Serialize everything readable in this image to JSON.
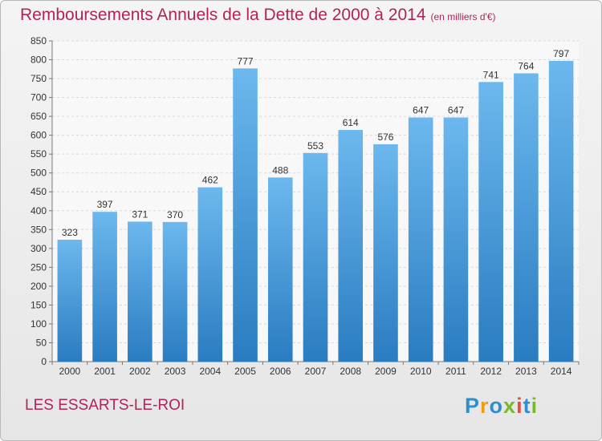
{
  "title": "Remboursements Annuels de la Dette de 2000 à 2014",
  "subtitle": "(en milliers d'€)",
  "city": "LES ESSARTS-LE-ROI",
  "logo": {
    "letters": [
      "P",
      "r",
      "o",
      "x",
      "i",
      "t",
      "i"
    ],
    "colors": [
      "#2e8fd0",
      "#f39c12",
      "#2e8fd0",
      "#7ab929",
      "#e74c3c",
      "#2e8fd0",
      "#7ab929"
    ]
  },
  "colors": {
    "bar_top": "#6cb8ee",
    "bar_bottom": "#2a7cc1",
    "title": "#b0245a"
  },
  "chart_data": {
    "type": "bar",
    "categories": [
      "2000",
      "2001",
      "2002",
      "2003",
      "2004",
      "2005",
      "2006",
      "2007",
      "2008",
      "2009",
      "2010",
      "2011",
      "2012",
      "2013",
      "2014"
    ],
    "values": [
      323,
      397,
      371,
      370,
      462,
      777,
      488,
      553,
      614,
      576,
      647,
      647,
      741,
      764,
      797
    ],
    "data_labels": [
      "323",
      "397",
      "371",
      "370",
      "462",
      "777",
      "488",
      "553",
      "614",
      "576",
      "647",
      "647",
      "741",
      "764",
      "797"
    ],
    "ylim": [
      0,
      850
    ],
    "yticks": [
      0,
      50,
      100,
      150,
      200,
      250,
      300,
      350,
      400,
      450,
      500,
      550,
      600,
      650,
      700,
      750,
      800,
      850
    ],
    "grid": true
  }
}
